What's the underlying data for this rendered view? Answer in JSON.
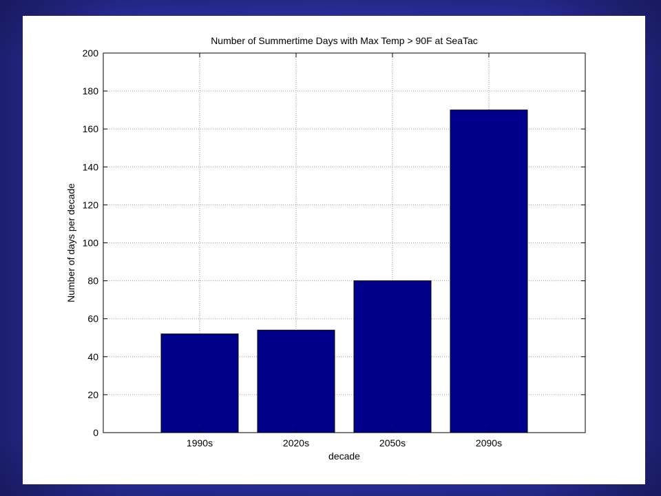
{
  "chart_data": {
    "type": "bar",
    "title": "Number of Summertime Days with Max Temp > 90F at SeaTac",
    "xlabel": "decade",
    "ylabel": "Number of days per decade",
    "categories": [
      "1990s",
      "2020s",
      "2050s",
      "2090s"
    ],
    "values": [
      52,
      54,
      80,
      170
    ],
    "ylim": [
      0,
      200
    ],
    "yticks": [
      "0",
      "20",
      "40",
      "60",
      "80",
      "100",
      "120",
      "140",
      "160",
      "180",
      "200"
    ],
    "grid": "dotted",
    "bar_color": "#00008b",
    "legend": "none"
  },
  "colors": {
    "slide_background": "#3a3dcc",
    "panel_background": "#ffffff",
    "bar": "#00008b"
  }
}
